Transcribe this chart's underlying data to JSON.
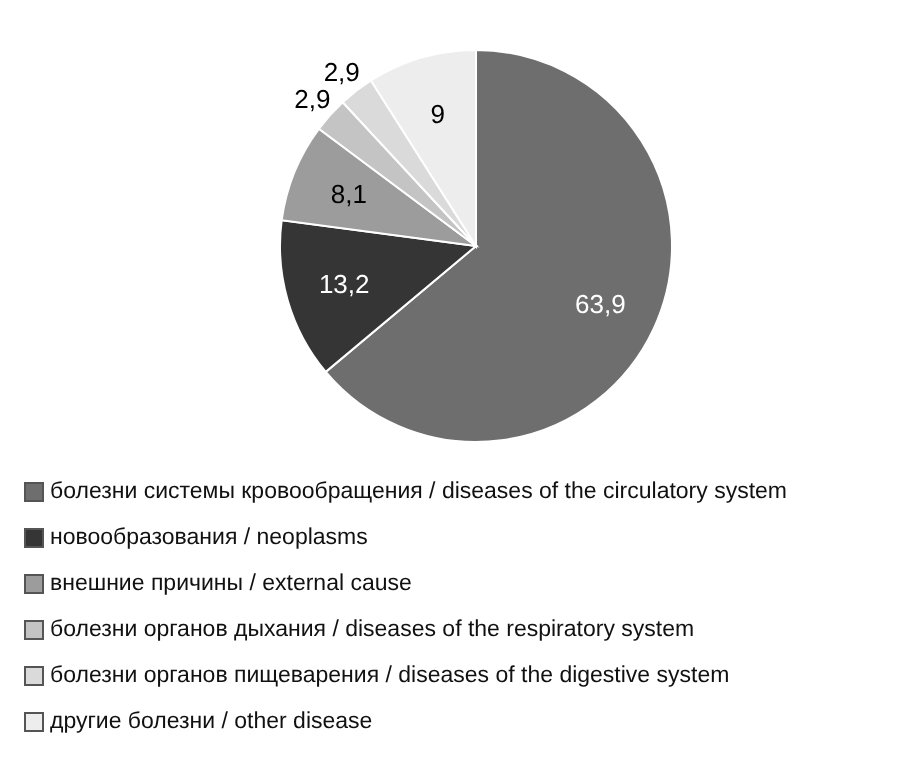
{
  "chart_data": {
    "type": "pie",
    "categories": [
      "болезни системы кровообращения / diseases of the circulatory system",
      "новообразования / neoplasms",
      "внешние причины / external cause",
      "болезни органов дыхания / diseases of the respiratory system",
      "болезни органов пищеварения / diseases of the digestive system",
      "другие болезни / other disease"
    ],
    "values": [
      63.9,
      13.2,
      8.1,
      2.9,
      2.9,
      9
    ],
    "value_labels": [
      "63,9",
      "13,2",
      "8,1",
      "2,9",
      "2,9",
      "9"
    ],
    "colors": [
      "#6e6e6e",
      "#353535",
      "#9c9c9c",
      "#c4c4c4",
      "#dadada",
      "#ededed"
    ],
    "legend": "bottom"
  }
}
